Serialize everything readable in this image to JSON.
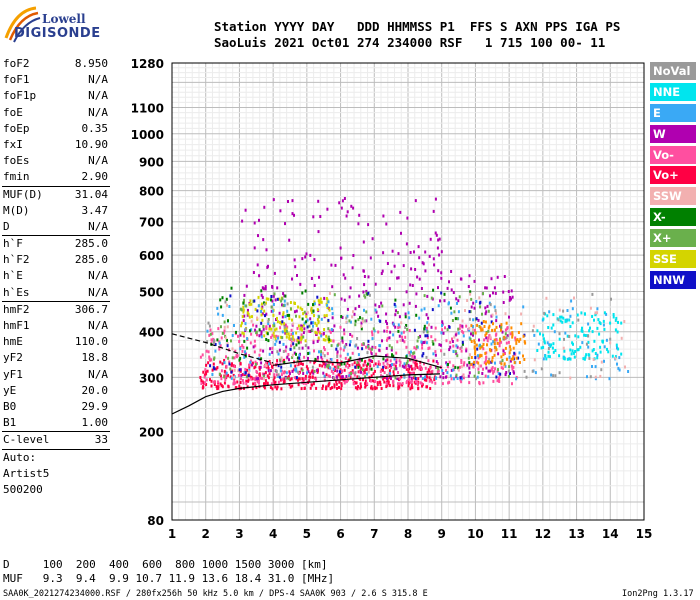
{
  "logo": {
    "line1": "Lowell",
    "line2": "DIGISONDE"
  },
  "header": {
    "line1": "Station YYYY DAY   DDD HHMMSS P1  FFS S AXN PPS IGA PS",
    "line2": "SaoLuis 2021 Oct01 274 234000 RSF   1 715 100 00- 11"
  },
  "params": [
    {
      "key": "foF2",
      "value": "8.950"
    },
    {
      "key": "foF1",
      "value": "N/A"
    },
    {
      "key": "foF1p",
      "value": "N/A"
    },
    {
      "key": "foE",
      "value": "N/A"
    },
    {
      "key": "foEp",
      "value": "0.35"
    },
    {
      "key": "fxI",
      "value": "10.90"
    },
    {
      "key": "foEs",
      "value": "N/A"
    },
    {
      "key": "fmin",
      "value": "2.90"
    },
    {
      "sep": true
    },
    {
      "key": "MUF(D)",
      "value": "31.04"
    },
    {
      "key": "M(D)",
      "value": "3.47"
    },
    {
      "key": "D",
      "value": "N/A"
    },
    {
      "sep": true
    },
    {
      "key": "h`F",
      "value": "285.0"
    },
    {
      "key": "h`F2",
      "value": "285.0"
    },
    {
      "key": "h`E",
      "value": "N/A"
    },
    {
      "key": "h`Es",
      "value": "N/A"
    },
    {
      "sep": true
    },
    {
      "key": "hmF2",
      "value": "306.7"
    },
    {
      "key": "hmF1",
      "value": "N/A"
    },
    {
      "key": "hmE",
      "value": "110.0"
    },
    {
      "key": "yF2",
      "value": "18.8"
    },
    {
      "key": "yF1",
      "value": "N/A"
    },
    {
      "key": "yE",
      "value": "20.0"
    },
    {
      "key": "B0",
      "value": "29.9"
    },
    {
      "key": "B1",
      "value": "1.00"
    },
    {
      "sep": true
    },
    {
      "key": "C-level",
      "value": "33"
    },
    {
      "sep": true
    }
  ],
  "autoscale": {
    "line1": "Auto:",
    "line2": "Artist5",
    "line3": "500200"
  },
  "legend": [
    {
      "label": "NoVal",
      "color": "#9a9a9a"
    },
    {
      "label": "NNE",
      "color": "#00e5ee"
    },
    {
      "label": "E",
      "color": "#3aa9f5"
    },
    {
      "label": "W",
      "color": "#b000b0"
    },
    {
      "label": "Vo-",
      "color": "#ff4fa0"
    },
    {
      "label": "Vo+",
      "color": "#ff0044"
    },
    {
      "label": "SSW",
      "color": "#f2b0b0"
    },
    {
      "label": "X-",
      "color": "#008000"
    },
    {
      "label": "X+",
      "color": "#6ab04c"
    },
    {
      "label": "SSE",
      "color": "#d4d400"
    },
    {
      "label": "NNW",
      "color": "#1010c8"
    }
  ],
  "chart_data": {
    "type": "scatter",
    "xlabel": "",
    "ylabel": "",
    "x_ticks": [
      "1",
      "2",
      "3",
      "4",
      "5",
      "6",
      "7",
      "8",
      "9",
      "10",
      "11",
      "12",
      "13",
      "14",
      "15"
    ],
    "y_ticks": [
      {
        "v": 80,
        "label": "80"
      },
      {
        "v": 200,
        "label": "200"
      },
      {
        "v": 300,
        "label": "300"
      },
      {
        "v": 400,
        "label": "400"
      },
      {
        "v": 500,
        "label": "500"
      },
      {
        "v": 600,
        "label": "600"
      },
      {
        "v": 700,
        "label": "700"
      },
      {
        "v": 800,
        "label": "800"
      },
      {
        "v": 900,
        "label": "900"
      },
      {
        "v": 1000,
        "label": "1000"
      },
      {
        "v": 1100,
        "label": "1100"
      },
      {
        "v": 1280,
        "label": "1280"
      }
    ],
    "xlim": [
      1,
      15
    ],
    "ylim": [
      80,
      1280
    ],
    "y_scale": "sqrt",
    "grid": true,
    "profile_line": {
      "color": "#000000",
      "x": [
        1.0,
        1.5,
        2.0,
        2.5,
        3.0,
        4.0,
        5.0,
        6.0,
        7.0,
        8.0,
        8.95
      ],
      "y": [
        230,
        245,
        262,
        272,
        278,
        285,
        290,
        295,
        300,
        305,
        307
      ]
    },
    "trace_line": {
      "color": "#000000",
      "x": [
        4.0,
        5.0,
        6.0,
        7.0,
        8.0,
        9.0
      ],
      "y": [
        325,
        335,
        330,
        345,
        340,
        320
      ]
    },
    "dashed_line": {
      "color": "#000000",
      "x": [
        1.0,
        2.0,
        3.0,
        4.0
      ],
      "y": [
        395,
        375,
        350,
        330
      ]
    },
    "point_clusters": [
      {
        "color": "#ff0044",
        "xr": [
          1.8,
          8.8
        ],
        "yr": [
          280,
          340
        ],
        "n": 420
      },
      {
        "color": "#ff4fa0",
        "xr": [
          1.8,
          11.2
        ],
        "yr": [
          290,
          420
        ],
        "n": 420
      },
      {
        "color": "#b000b0",
        "xr": [
          3.0,
          11.2
        ],
        "yr": [
          300,
          560
        ],
        "n": 320
      },
      {
        "color": "#b000b0",
        "xr": [
          3.0,
          9.0
        ],
        "yr": [
          560,
          780
        ],
        "n": 90
      },
      {
        "color": "#d4d400",
        "xr": [
          3.0,
          5.7
        ],
        "yr": [
          380,
          490
        ],
        "n": 130
      },
      {
        "color": "#3aa9f5",
        "xr": [
          2.0,
          14.5
        ],
        "yr": [
          300,
          480
        ],
        "n": 220
      },
      {
        "color": "#00e5ee",
        "xr": [
          11.8,
          14.3
        ],
        "yr": [
          340,
          450
        ],
        "n": 120
      },
      {
        "color": "#6ab04c",
        "xr": [
          2.0,
          11.0
        ],
        "yr": [
          300,
          500
        ],
        "n": 130
      },
      {
        "color": "#008000",
        "xr": [
          2.0,
          10.0
        ],
        "yr": [
          320,
          520
        ],
        "n": 80
      },
      {
        "color": "#f2b0b0",
        "xr": [
          2.5,
          14.5
        ],
        "yr": [
          300,
          500
        ],
        "n": 80
      },
      {
        "color": "#1010c8",
        "xr": [
          2.0,
          11.5
        ],
        "yr": [
          300,
          500
        ],
        "n": 70
      },
      {
        "color": "#9a9a9a",
        "xr": [
          2.0,
          14.0
        ],
        "yr": [
          300,
          500
        ],
        "n": 80
      },
      {
        "color": "#ff8c00",
        "xr": [
          9.8,
          11.5
        ],
        "yr": [
          330,
          430
        ],
        "n": 90
      }
    ]
  },
  "footer": {
    "d_line": "D     100  200  400  600  800 1000 1500 3000 [km]",
    "muf_line": "MUF   9.3  9.4  9.9 10.7 11.9 13.6 18.4 31.0 [MHz]",
    "meta": "SAA0K_2021274234000.RSF / 280fx256h 50 kHz 5.0 km / DPS-4 SAA0K 903 / 2.6 S 315.8 E",
    "version": "Ion2Png 1.3.17"
  }
}
